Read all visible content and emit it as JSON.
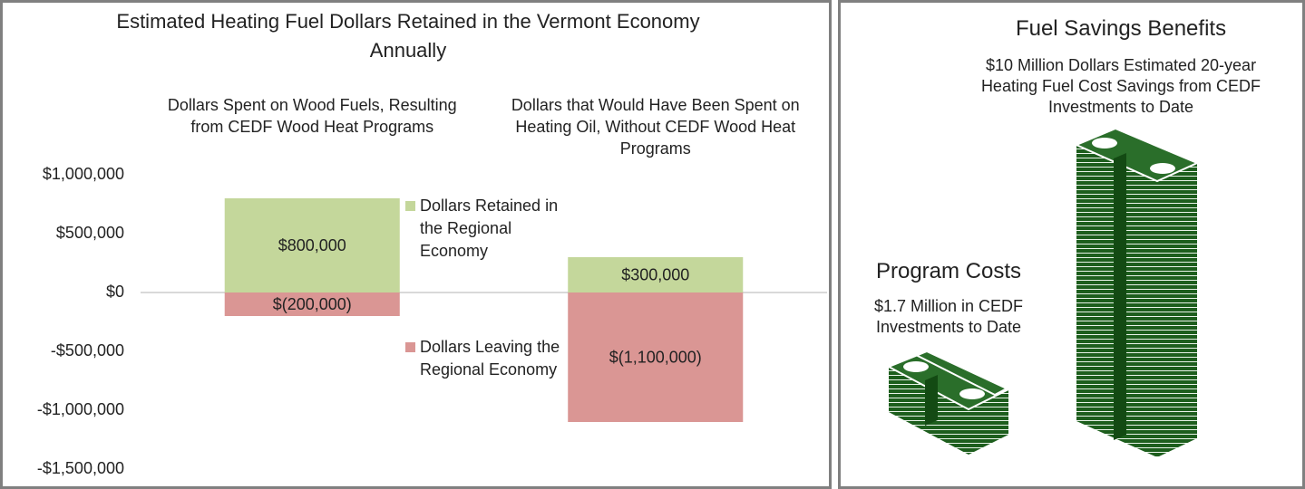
{
  "chart_data": {
    "type": "stacked-bar",
    "title": "Estimated Heating Fuel Dollars Retained in the Vermont Economy Annually",
    "categories": [
      "Dollars Spent on Wood Fuels, Resulting from CEDF Wood Heat Programs",
      "Dollars that Would Have Been Spent on Heating Oil, Without CEDF Wood Heat Programs"
    ],
    "series": [
      {
        "name": "Dollars Retained in the Regional Economy",
        "color": "#c4d79b",
        "values": [
          800000,
          300000
        ],
        "value_labels": [
          "$800,000",
          "$300,000"
        ]
      },
      {
        "name": "Dollars Leaving the Regional Economy",
        "color": "#da9694",
        "values": [
          -200000,
          -1100000
        ],
        "value_labels": [
          "$(200,000)",
          "$(1,100,000)"
        ]
      }
    ],
    "ylim": [
      -1500000,
      1000000
    ],
    "yticks": [
      {
        "value": -1500000,
        "label": "-$1,500,000"
      },
      {
        "value": -1000000,
        "label": "-$1,000,000"
      },
      {
        "value": -500000,
        "label": "-$500,000"
      },
      {
        "value": 0,
        "label": "$0"
      },
      {
        "value": 500000,
        "label": "$500,000"
      },
      {
        "value": 1000000,
        "label": "$1,000,000"
      }
    ],
    "grid": false
  },
  "infographic": {
    "benefits": {
      "heading": "Fuel Savings Benefits",
      "text": "$10 Million Dollars Estimated 20-year Heating Fuel Cost Savings from CEDF Investments to Date"
    },
    "costs": {
      "heading": "Program Costs",
      "text": "$1.7 Million in CEDF Investments to Date"
    }
  }
}
